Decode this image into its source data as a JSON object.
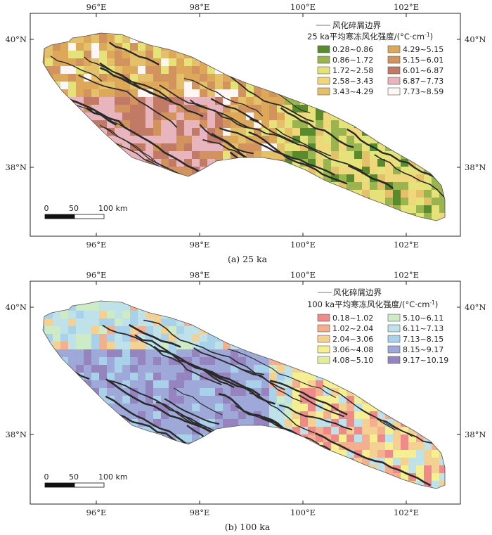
{
  "panels": [
    {
      "caption": "(a) 25 ka",
      "boundary_label": "风化碎屑边界",
      "legend_title": "25 ka平均寒冻风化强度/(°C·cm",
      "legend_title_sup": "-1",
      "legend_title_end": ")",
      "classes": [
        {
          "label": "0.28~0.86",
          "color": "#5a8a2e"
        },
        {
          "label": "0.86~1.72",
          "color": "#9ab550"
        },
        {
          "label": "1.72~2.58",
          "color": "#e6e27a"
        },
        {
          "label": "2.58~3.43",
          "color": "#efd77c"
        },
        {
          "label": "3.43~4.29",
          "color": "#e5c06a"
        },
        {
          "label": "4.29~5.15",
          "color": "#dda85a"
        },
        {
          "label": "5.15~6.01",
          "color": "#d2935e"
        },
        {
          "label": "6.01~6.87",
          "color": "#c07a66"
        },
        {
          "label": "6.87~7.73",
          "color": "#e8b4bd"
        },
        {
          "label": "7.73~8.59",
          "color": "#fdf6f4"
        }
      ],
      "scale_labels": [
        "0",
        "50",
        "100 km"
      ]
    },
    {
      "caption": "(b) 100 ka",
      "boundary_label": "风化碎屑边界",
      "legend_title": "100 ka平均寒冻风化强度/(°C·cm",
      "legend_title_sup": "-1",
      "legend_title_end": ")",
      "classes": [
        {
          "label": "0.18~1.02",
          "color": "#ef8a8a"
        },
        {
          "label": "1.02~2.04",
          "color": "#f4b08e"
        },
        {
          "label": "2.04~3.06",
          "color": "#f4d193"
        },
        {
          "label": "3.06~4.08",
          "color": "#f6ee93"
        },
        {
          "label": "4.08~5.10",
          "color": "#e3eda0"
        },
        {
          "label": "5.10~6.11",
          "color": "#cdebc6"
        },
        {
          "label": "6.11~7.13",
          "color": "#bfe2ea"
        },
        {
          "label": "7.13~8.15",
          "color": "#a9d1ea"
        },
        {
          "label": "8.15~9.17",
          "color": "#9fa9d9"
        },
        {
          "label": "9.17~10.19",
          "color": "#9584bf"
        }
      ],
      "scale_labels": [
        "0",
        "50",
        "100 km"
      ]
    }
  ],
  "axis": {
    "lon_ticks": [
      "96°E",
      "98°E",
      "100°E",
      "102°E"
    ],
    "lat_ticks": [
      "40°N",
      "38°N"
    ]
  },
  "colors": {
    "boundary_line": "#777777",
    "frame": "#222222",
    "fracture_lines": "#2a2a2a"
  }
}
